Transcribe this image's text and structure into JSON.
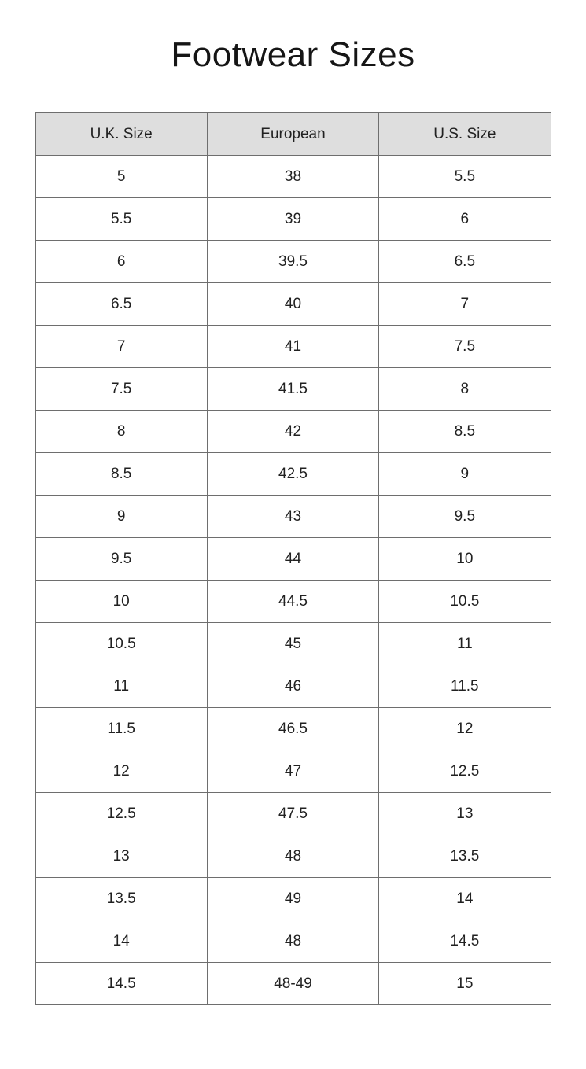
{
  "page": {
    "title": "Footwear Sizes"
  },
  "chart_data": {
    "type": "table",
    "title": "Footwear Sizes",
    "columns": [
      "U.K. Size",
      "European",
      "U.S. Size"
    ],
    "rows": [
      [
        "5",
        "38",
        "5.5"
      ],
      [
        "5.5",
        "39",
        "6"
      ],
      [
        "6",
        "39.5",
        "6.5"
      ],
      [
        "6.5",
        "40",
        "7"
      ],
      [
        "7",
        "41",
        "7.5"
      ],
      [
        "7.5",
        "41.5",
        "8"
      ],
      [
        "8",
        "42",
        "8.5"
      ],
      [
        "8.5",
        "42.5",
        "9"
      ],
      [
        "9",
        "43",
        "9.5"
      ],
      [
        "9.5",
        "44",
        "10"
      ],
      [
        "10",
        "44.5",
        "10.5"
      ],
      [
        "10.5",
        "45",
        "11"
      ],
      [
        "11",
        "46",
        "11.5"
      ],
      [
        "11.5",
        "46.5",
        "12"
      ],
      [
        "12",
        "47",
        "12.5"
      ],
      [
        "12.5",
        "47.5",
        "13"
      ],
      [
        "13",
        "48",
        "13.5"
      ],
      [
        "13.5",
        "49",
        "14"
      ],
      [
        "14",
        "48",
        "14.5"
      ],
      [
        "14.5",
        "48-49",
        "15"
      ]
    ]
  },
  "colors": {
    "header_background": "#dedede",
    "table_border": "#6e6e6e",
    "cell_text": "#212121",
    "title_text": "#151515",
    "page_background": "#ffffff"
  }
}
